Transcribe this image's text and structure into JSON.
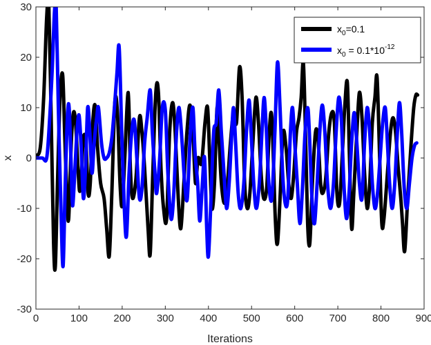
{
  "chart_data": {
    "type": "line",
    "title": "",
    "xlabel": "Iterations",
    "ylabel": "x",
    "xlim": [
      0,
      900
    ],
    "ylim": [
      -30,
      30
    ],
    "xticks": [
      0,
      100,
      200,
      300,
      400,
      500,
      600,
      700,
      800,
      900
    ],
    "yticks": [
      -30,
      -20,
      -10,
      0,
      10,
      20,
      30
    ],
    "grid": false,
    "legend": {
      "position": "top-right",
      "entries": [
        {
          "prefix": "x",
          "sub": "0",
          "suffix": "=0.1",
          "sup": ""
        },
        {
          "prefix": "x",
          "sub": "0",
          "suffix": " = 0.1*10",
          "sup": "-12"
        }
      ]
    },
    "series": [
      {
        "color": "#000000",
        "points": [
          [
            0,
            0.5
          ],
          [
            10,
            2
          ],
          [
            18,
            12
          ],
          [
            25,
            28
          ],
          [
            30,
            30
          ],
          [
            36,
            5
          ],
          [
            41,
            -17
          ],
          [
            45,
            -21.5
          ],
          [
            50,
            -5
          ],
          [
            56,
            12
          ],
          [
            62,
            16.5
          ],
          [
            67,
            4
          ],
          [
            72,
            -8
          ],
          [
            76,
            -12
          ],
          [
            82,
            3
          ],
          [
            87,
            9
          ],
          [
            92,
            7
          ],
          [
            97,
            -1
          ],
          [
            101,
            -6.5
          ],
          [
            105,
            -4
          ],
          [
            110,
            4
          ],
          [
            116,
            3
          ],
          [
            121,
            -7
          ],
          [
            126,
            -5
          ],
          [
            131,
            6
          ],
          [
            137,
            10.5
          ],
          [
            143,
            2
          ],
          [
            150,
            -5
          ],
          [
            158,
            -8
          ],
          [
            164,
            -14
          ],
          [
            170,
            -19.5
          ],
          [
            176,
            -7
          ],
          [
            183,
            11
          ],
          [
            189,
            9
          ],
          [
            195,
            -5
          ],
          [
            200,
            -9.5
          ],
          [
            206,
            0
          ],
          [
            214,
            13
          ],
          [
            219,
            -2
          ],
          [
            224,
            -8
          ],
          [
            232,
            -4
          ],
          [
            240,
            8
          ],
          [
            246,
            5
          ],
          [
            252,
            -2
          ],
          [
            260,
            -14
          ],
          [
            265,
            -19
          ],
          [
            271,
            -3
          ],
          [
            278,
            13
          ],
          [
            284,
            13
          ],
          [
            290,
            -2
          ],
          [
            296,
            -10
          ],
          [
            303,
            -12
          ],
          [
            310,
            5
          ],
          [
            317,
            11
          ],
          [
            323,
            5
          ],
          [
            330,
            -8
          ],
          [
            336,
            -14
          ],
          [
            343,
            -5
          ],
          [
            350,
            5
          ],
          [
            357,
            10.5
          ],
          [
            364,
            5
          ],
          [
            370,
            -5
          ],
          [
            376,
            0
          ],
          [
            384,
            -1
          ],
          [
            392,
            7
          ],
          [
            398,
            10
          ],
          [
            403,
            0
          ],
          [
            408,
            -10
          ],
          [
            414,
            -5
          ],
          [
            420,
            10
          ],
          [
            425,
            3
          ],
          [
            430,
            -5
          ],
          [
            437,
            -9
          ],
          [
            444,
            -5
          ],
          [
            451,
            3
          ],
          [
            458,
            9
          ],
          [
            465,
            7
          ],
          [
            472,
            18
          ],
          [
            478,
            12
          ],
          [
            484,
            -5
          ],
          [
            490,
            -10
          ],
          [
            496,
            -7
          ],
          [
            503,
            3
          ],
          [
            510,
            12
          ],
          [
            516,
            7
          ],
          [
            522,
            -3
          ],
          [
            528,
            -8
          ],
          [
            535,
            -6
          ],
          [
            541,
            5
          ],
          [
            547,
            8
          ],
          [
            555,
            -12
          ],
          [
            560,
            -17
          ],
          [
            566,
            -8
          ],
          [
            573,
            5
          ],
          [
            580,
            2
          ],
          [
            586,
            -5
          ],
          [
            592,
            -8
          ],
          [
            598,
            -3
          ],
          [
            604,
            5
          ],
          [
            610,
            8
          ],
          [
            615,
            12
          ],
          [
            620,
            19
          ],
          [
            625,
            5
          ],
          [
            630,
            -13
          ],
          [
            635,
            -17
          ],
          [
            641,
            -5
          ],
          [
            648,
            5
          ],
          [
            654,
            4
          ],
          [
            660,
            -5
          ],
          [
            665,
            -7
          ],
          [
            672,
            -4
          ],
          [
            679,
            5
          ],
          [
            686,
            9
          ],
          [
            692,
            7
          ],
          [
            698,
            -7
          ],
          [
            704,
            -9
          ],
          [
            710,
            0
          ],
          [
            716,
            10
          ],
          [
            722,
            15
          ],
          [
            727,
            0
          ],
          [
            732,
            -14
          ],
          [
            737,
            -7
          ],
          [
            744,
            5
          ],
          [
            750,
            13
          ],
          [
            756,
            8
          ],
          [
            762,
            -3
          ],
          [
            768,
            -10
          ],
          [
            774,
            -5
          ],
          [
            780,
            7
          ],
          [
            786,
            12
          ],
          [
            791,
            16
          ],
          [
            797,
            0
          ],
          [
            802,
            -13
          ],
          [
            807,
            -12
          ],
          [
            815,
            -3
          ],
          [
            822,
            5
          ],
          [
            828,
            8
          ],
          [
            834,
            5
          ],
          [
            840,
            -2
          ],
          [
            846,
            -8
          ],
          [
            850,
            -13
          ],
          [
            855,
            -18.5
          ],
          [
            862,
            -8
          ],
          [
            870,
            3
          ],
          [
            876,
            10
          ],
          [
            881,
            12.5
          ],
          [
            885,
            12.5
          ]
        ]
      },
      {
        "color": "#0000ff",
        "points": [
          [
            0,
            0
          ],
          [
            15,
            0
          ],
          [
            25,
            0
          ],
          [
            32,
            8
          ],
          [
            38,
            18
          ],
          [
            43,
            29
          ],
          [
            47,
            30
          ],
          [
            52,
            10
          ],
          [
            58,
            -10
          ],
          [
            63,
            -21.5
          ],
          [
            68,
            -5
          ],
          [
            73,
            8
          ],
          [
            77,
            10
          ],
          [
            82,
            -2
          ],
          [
            85,
            -9.5
          ],
          [
            90,
            -3
          ],
          [
            95,
            5
          ],
          [
            100,
            8.5
          ],
          [
            105,
            2
          ],
          [
            110,
            -8
          ],
          [
            115,
            -2
          ],
          [
            120,
            10
          ],
          [
            125,
            5
          ],
          [
            130,
            -3
          ],
          [
            135,
            3
          ],
          [
            141,
            8
          ],
          [
            145,
            10
          ],
          [
            152,
            3
          ],
          [
            158,
            0
          ],
          [
            164,
            0
          ],
          [
            170,
            1
          ],
          [
            176,
            4
          ],
          [
            182,
            10
          ],
          [
            188,
            17
          ],
          [
            193,
            22
          ],
          [
            199,
            5
          ],
          [
            205,
            -10
          ],
          [
            210,
            -15.5
          ],
          [
            216,
            -3
          ],
          [
            222,
            5
          ],
          [
            228,
            7.5
          ],
          [
            234,
            0
          ],
          [
            240,
            -8
          ],
          [
            246,
            -6
          ],
          [
            252,
            3
          ],
          [
            258,
            8
          ],
          [
            265,
            13.5
          ],
          [
            270,
            5
          ],
          [
            276,
            -3
          ],
          [
            280,
            -7
          ],
          [
            287,
            0
          ],
          [
            293,
            10
          ],
          [
            300,
            9.5
          ],
          [
            306,
            -3
          ],
          [
            313,
            -12
          ],
          [
            319,
            -8
          ],
          [
            326,
            5
          ],
          [
            332,
            10
          ],
          [
            339,
            3
          ],
          [
            345,
            -5
          ],
          [
            351,
            -8
          ],
          [
            358,
            5
          ],
          [
            364,
            10
          ],
          [
            369,
            1
          ],
          [
            375,
            -5
          ],
          [
            380,
            -12.5
          ],
          [
            386,
            -5
          ],
          [
            391,
            0
          ],
          [
            396,
            -14
          ],
          [
            400,
            -19.5
          ],
          [
            406,
            -8
          ],
          [
            412,
            5
          ],
          [
            418,
            7
          ],
          [
            424,
            13.5
          ],
          [
            430,
            5
          ],
          [
            436,
            -3
          ],
          [
            442,
            -10
          ],
          [
            448,
            -5
          ],
          [
            453,
            3
          ],
          [
            458,
            10
          ],
          [
            463,
            3
          ],
          [
            469,
            -7
          ],
          [
            475,
            -10
          ],
          [
            482,
            -5
          ],
          [
            488,
            5
          ],
          [
            494,
            11.5
          ],
          [
            499,
            5
          ],
          [
            505,
            -5
          ],
          [
            511,
            -10
          ],
          [
            518,
            -5
          ],
          [
            524,
            5
          ],
          [
            529,
            12
          ],
          [
            534,
            6
          ],
          [
            540,
            -5
          ],
          [
            547,
            -8
          ],
          [
            554,
            5
          ],
          [
            560,
            19
          ],
          [
            566,
            10
          ],
          [
            572,
            -3
          ],
          [
            578,
            -9
          ],
          [
            584,
            -8
          ],
          [
            590,
            5
          ],
          [
            595,
            10
          ],
          [
            600,
            3
          ],
          [
            606,
            -5
          ],
          [
            612,
            -13
          ],
          [
            618,
            -6
          ],
          [
            624,
            5
          ],
          [
            630,
            10
          ],
          [
            634,
            5
          ],
          [
            640,
            -8
          ],
          [
            646,
            -13
          ],
          [
            652,
            -5
          ],
          [
            658,
            5
          ],
          [
            664,
            10.5
          ],
          [
            670,
            5
          ],
          [
            676,
            -5
          ],
          [
            683,
            -10
          ],
          [
            690,
            -5
          ],
          [
            696,
            5
          ],
          [
            702,
            12
          ],
          [
            708,
            8
          ],
          [
            714,
            -5
          ],
          [
            720,
            -12
          ],
          [
            726,
            -7
          ],
          [
            732,
            3
          ],
          [
            738,
            9
          ],
          [
            744,
            3
          ],
          [
            750,
            -5
          ],
          [
            756,
            -8
          ],
          [
            762,
            3
          ],
          [
            768,
            10
          ],
          [
            774,
            5
          ],
          [
            780,
            -5
          ],
          [
            786,
            -10
          ],
          [
            792,
            -7
          ],
          [
            798,
            0
          ],
          [
            804,
            7
          ],
          [
            810,
            10
          ],
          [
            815,
            3
          ],
          [
            820,
            -5
          ],
          [
            826,
            -10
          ],
          [
            832,
            -5
          ],
          [
            838,
            5
          ],
          [
            843,
            11
          ],
          [
            848,
            5
          ],
          [
            854,
            -6
          ],
          [
            860,
            -10
          ],
          [
            866,
            -5
          ],
          [
            872,
            0
          ],
          [
            878,
            2.5
          ],
          [
            883,
            3
          ]
        ]
      }
    ]
  }
}
